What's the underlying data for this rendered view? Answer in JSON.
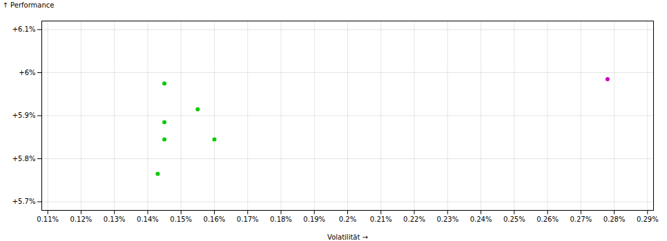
{
  "chart_data": {
    "type": "scatter",
    "xlabel": "Volatilität",
    "ylabel": "Performance",
    "xlim": [
      0.001082,
      0.002918
    ],
    "ylim": [
      0.0568,
      0.0612
    ],
    "xticks": [
      {
        "value": 0.0011,
        "label": "0.11%"
      },
      {
        "value": 0.0012,
        "label": "0.12%"
      },
      {
        "value": 0.0013,
        "label": "0.13%"
      },
      {
        "value": 0.0014,
        "label": "0.14%"
      },
      {
        "value": 0.0015,
        "label": "0.15%"
      },
      {
        "value": 0.0016,
        "label": "0.16%"
      },
      {
        "value": 0.0017,
        "label": "0.17%"
      },
      {
        "value": 0.0018,
        "label": "0.18%"
      },
      {
        "value": 0.0019,
        "label": "0.19%"
      },
      {
        "value": 0.002,
        "label": "0.2%"
      },
      {
        "value": 0.0021,
        "label": "0.21%"
      },
      {
        "value": 0.0022,
        "label": "0.22%"
      },
      {
        "value": 0.0023,
        "label": "0.23%"
      },
      {
        "value": 0.0024,
        "label": "0.24%"
      },
      {
        "value": 0.0025,
        "label": "0.25%"
      },
      {
        "value": 0.0026,
        "label": "0.26%"
      },
      {
        "value": 0.0027,
        "label": "0.27%"
      },
      {
        "value": 0.0028,
        "label": "0.28%"
      },
      {
        "value": 0.0029,
        "label": "0.29%"
      }
    ],
    "yticks": [
      {
        "value": 0.057,
        "label": "+5.7%"
      },
      {
        "value": 0.058,
        "label": "+5.8%"
      },
      {
        "value": 0.059,
        "label": "+5.9%"
      },
      {
        "value": 0.06,
        "label": "+6%"
      },
      {
        "value": 0.061,
        "label": "+6.1%"
      }
    ],
    "grid": true,
    "series": [
      {
        "color": "#00cc00",
        "x": [
          0.00145,
          0.00155,
          0.00145,
          0.00145,
          0.0016,
          0.00143
        ],
        "values": [
          0.05975,
          0.05915,
          0.05885,
          0.05845,
          0.05845,
          0.05765
        ]
      },
      {
        "color": "#cc00cc",
        "x": [
          0.00278
        ],
        "values": [
          0.05985
        ]
      }
    ]
  }
}
